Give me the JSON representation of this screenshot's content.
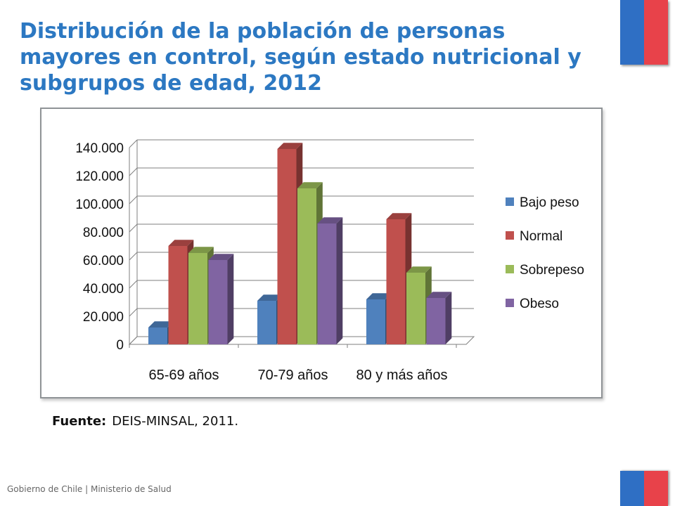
{
  "page": {
    "title": "Distribución de la población de personas mayores en control, según estado nutricional y subgrupos de edad, 2012",
    "source_label": "Fuente:",
    "source_text": "DEIS-MINSAL, 2011.",
    "footer": "Gobierno de Chile | Ministerio de Salud"
  },
  "colors": {
    "title": "#2c78c2",
    "flag_blue": "#2f6fc4",
    "flag_red": "#e8424a"
  },
  "chart_data": {
    "type": "bar",
    "categories": [
      "65-69 años",
      "70-79 años",
      "80 y más años"
    ],
    "series": [
      {
        "name": "Bajo peso",
        "values": [
          12000,
          31000,
          32000
        ],
        "color": "#4f81bd"
      },
      {
        "name": "Normal",
        "values": [
          70000,
          139000,
          89000
        ],
        "color": "#c0504d"
      },
      {
        "name": "Sobrepeso",
        "values": [
          65000,
          111000,
          51000
        ],
        "color": "#9bbb59"
      },
      {
        "name": "Obeso",
        "values": [
          60000,
          86000,
          33000
        ],
        "color": "#8064a2"
      }
    ],
    "yticks": [
      "0",
      "20.000",
      "40.000",
      "60.000",
      "80.000",
      "100.000",
      "120.000",
      "140.000"
    ],
    "ylim": [
      0,
      140000
    ],
    "grid": true,
    "legend_position": "right",
    "three_d": true,
    "title": "",
    "xlabel": "",
    "ylabel": ""
  }
}
